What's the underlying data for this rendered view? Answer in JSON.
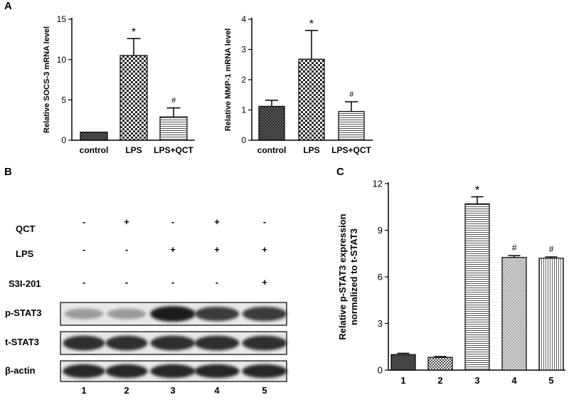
{
  "panels": {
    "a": "A",
    "b": "B",
    "c": "C"
  },
  "chart_data": [
    {
      "id": "socs3",
      "type": "bar",
      "categories": [
        "control",
        "LPS",
        "LPS+QCT"
      ],
      "values": [
        1.0,
        10.5,
        2.9
      ],
      "errors": [
        0.0,
        2.1,
        1.1
      ],
      "annotations": [
        "",
        "*",
        "#"
      ],
      "ylabel": "Relative SOCS-3 mRNA level",
      "ylim": [
        0,
        15
      ],
      "yticks": [
        0,
        5,
        10,
        15
      ],
      "grid": false
    },
    {
      "id": "mmp1",
      "type": "bar",
      "categories": [
        "control",
        "LPS",
        "LPS+QCT"
      ],
      "values": [
        1.12,
        2.68,
        0.95
      ],
      "errors": [
        0.2,
        0.95,
        0.32
      ],
      "annotations": [
        "",
        "*",
        "#"
      ],
      "ylabel": "Relative MMP-1 mRNA level",
      "ylim": [
        0,
        4
      ],
      "yticks": [
        0,
        1,
        2,
        3,
        4
      ],
      "grid": false
    },
    {
      "id": "pstat3",
      "type": "bar",
      "categories": [
        "1",
        "2",
        "3",
        "4",
        "5"
      ],
      "values": [
        1.0,
        0.82,
        10.7,
        7.25,
        7.2
      ],
      "errors": [
        0.08,
        0.05,
        0.45,
        0.12,
        0.08
      ],
      "annotations": [
        "",
        "",
        "*",
        "#",
        "#"
      ],
      "ylabel": "Relative p-STAT3 expression\nnormalized to t-STAT3",
      "ylim": [
        0,
        12
      ],
      "yticks": [
        0,
        3,
        6,
        9,
        12
      ],
      "grid": false
    }
  ],
  "western_blot": {
    "treatment_rows": [
      {
        "label": "QCT",
        "signs": [
          "-",
          "+",
          "-",
          "+",
          "-"
        ]
      },
      {
        "label": "LPS",
        "signs": [
          "-",
          "-",
          "+",
          "+",
          "+"
        ]
      },
      {
        "label": "S3I-201",
        "signs": [
          "-",
          "-",
          "-",
          "-",
          "+"
        ]
      }
    ],
    "blots": [
      {
        "label": "p-STAT3",
        "intensity": [
          0.35,
          0.35,
          0.95,
          0.8,
          0.8
        ]
      },
      {
        "label": "t-STAT3",
        "intensity": [
          0.85,
          0.85,
          0.85,
          0.85,
          0.85
        ]
      },
      {
        "label": "β-actin",
        "intensity": [
          0.9,
          0.9,
          0.9,
          0.9,
          0.9
        ]
      }
    ],
    "lanes": [
      "1",
      "2",
      "3",
      "4",
      "5"
    ]
  }
}
